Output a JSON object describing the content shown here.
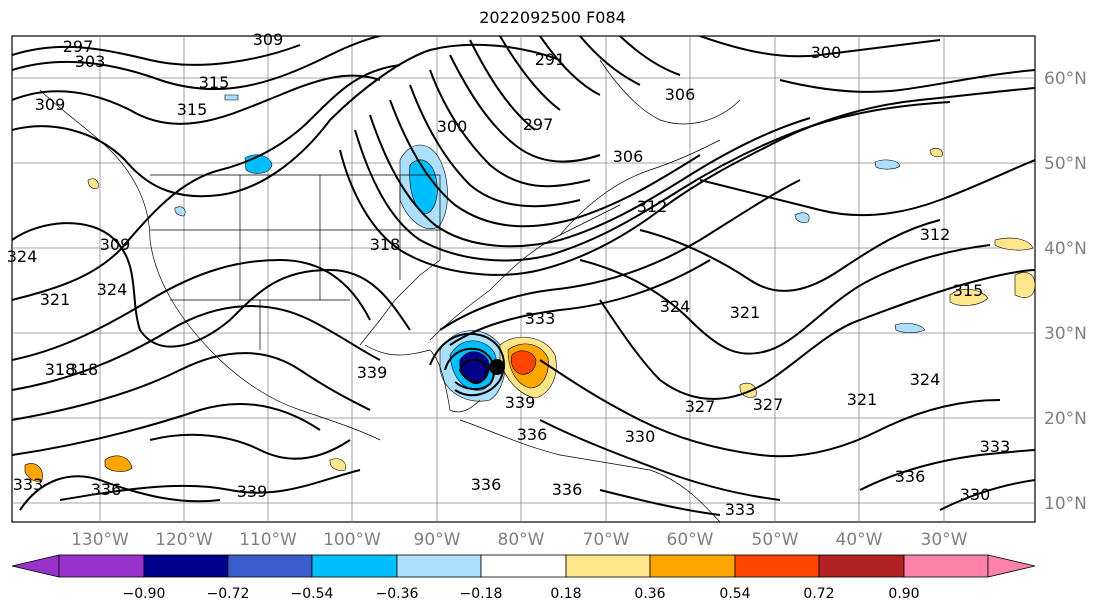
{
  "title": "2022092500 F084",
  "lon_labels": [
    "130°W",
    "120°W",
    "110°W",
    "100°W",
    "90°W",
    "80°W",
    "70°W",
    "60°W",
    "50°W",
    "40°W",
    "30°W"
  ],
  "lat_labels": [
    "60°N",
    "50°N",
    "40°N",
    "30°N",
    "20°N",
    "10°N"
  ],
  "colorbar": {
    "tick_labels": [
      "−0.90",
      "−0.72",
      "−0.54",
      "−0.36",
      "−0.18",
      "0.18",
      "0.36",
      "0.54",
      "0.72",
      "0.90"
    ],
    "colors": [
      "#9932cc",
      "#9932cc",
      "#00008b",
      "#3a5fcd",
      "#00bfff",
      "#addfff",
      "#ffffff",
      "#ffe68a",
      "#ffa500",
      "#ff4500",
      "#b22222",
      "#ff82ab",
      "#ff82ab"
    ]
  },
  "contour_labels": [
    "297",
    "303",
    "309",
    "300",
    "315",
    "315",
    "309",
    "309",
    "321",
    "324",
    "318",
    "318",
    "318",
    "312",
    "306",
    "297",
    "291",
    "300",
    "306",
    "333",
    "339",
    "339",
    "336",
    "330",
    "336",
    "336",
    "336",
    "339",
    "333",
    "330",
    "336",
    "333",
    "327",
    "327",
    "321",
    "324",
    "321",
    "315",
    "312",
    "324",
    "333",
    "324"
  ],
  "storm_marker": "hurricane-center"
}
